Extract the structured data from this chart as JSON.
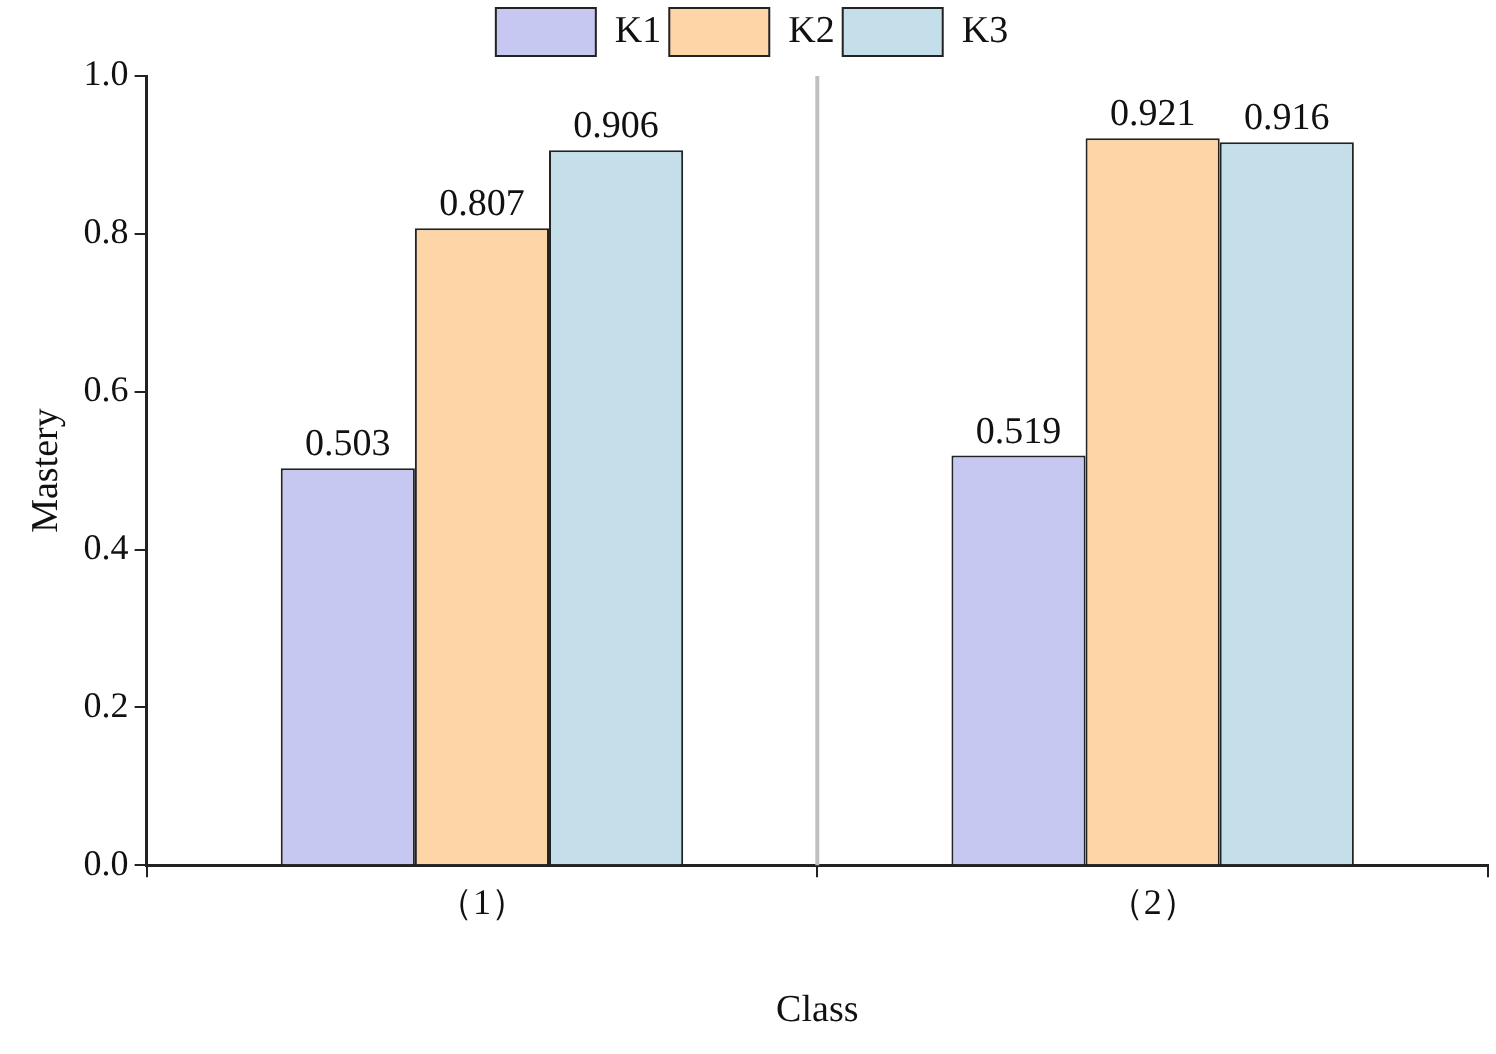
{
  "chart_data": {
    "type": "bar",
    "xlabel": "Class",
    "ylabel": "Mastery",
    "categories": [
      "（1）",
      "（2）"
    ],
    "series": [
      {
        "name": "K1",
        "color": "#c6c8f2",
        "values": [
          0.503,
          0.519
        ]
      },
      {
        "name": "K2",
        "color": "#fdd5a6",
        "values": [
          0.807,
          0.921
        ]
      },
      {
        "name": "K3",
        "color": "#c4dfea",
        "values": [
          0.906,
          0.916
        ]
      }
    ],
    "ylim": [
      0,
      1
    ],
    "yticks": [
      {
        "value": 0,
        "label": "0.0"
      },
      {
        "value": 0.2,
        "label": "0.2"
      },
      {
        "value": 0.4,
        "label": "0.4"
      },
      {
        "value": 0.6,
        "label": "0.6"
      },
      {
        "value": 0.8,
        "label": "0.8"
      },
      {
        "value": 1,
        "label": "1.0"
      }
    ],
    "grid": false,
    "legend": "top",
    "data_labels": true
  }
}
